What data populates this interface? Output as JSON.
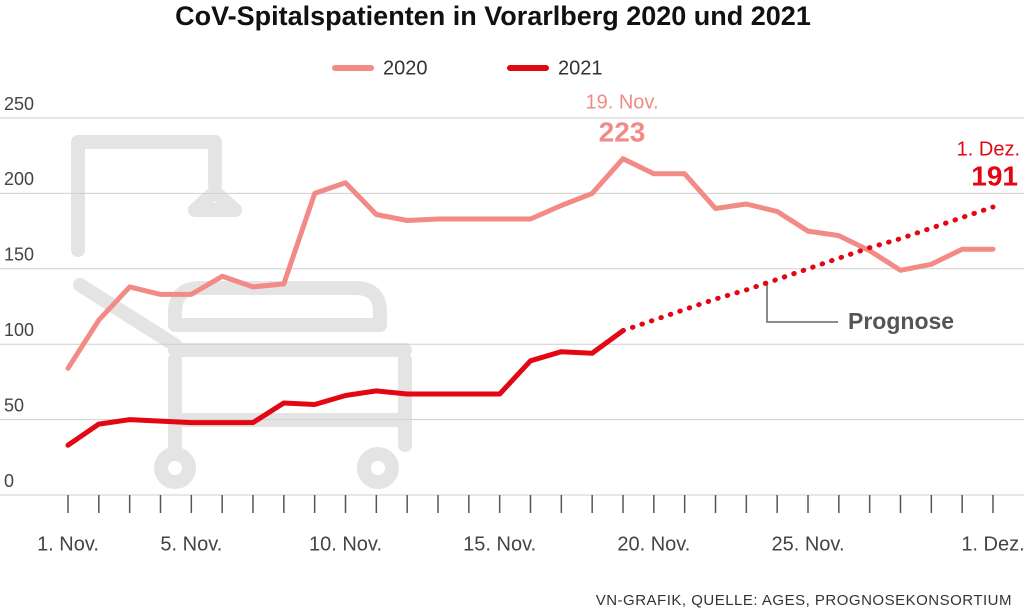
{
  "chart_data": {
    "type": "line",
    "title": "CoV-Spitalspatienten in Vorarlberg 2020 und 2021",
    "source": "VN-GRAFIK, QUELLE: AGES, PROGNOSEKONSORTIUM",
    "categories": [
      "1. Nov.",
      null,
      null,
      null,
      "5. Nov.",
      null,
      null,
      null,
      null,
      "10. Nov.",
      null,
      null,
      null,
      null,
      "15. Nov.",
      null,
      null,
      null,
      null,
      "20. Nov.",
      null,
      null,
      null,
      null,
      "25. Nov.",
      null,
      null,
      null,
      null,
      null,
      "1. Dez."
    ],
    "series": [
      {
        "name": "2020",
        "color": "#f28a86",
        "dash": "solid",
        "values": [
          84,
          116,
          138,
          133,
          133,
          145,
          138,
          140,
          200,
          207,
          186,
          182,
          183,
          183,
          183,
          183,
          192,
          200,
          223,
          213,
          213,
          190,
          193,
          188,
          175,
          172,
          162,
          149,
          153,
          163,
          163
        ]
      },
      {
        "name": "2021",
        "color": "#e30613",
        "dash": "solid",
        "values": [
          33,
          47,
          50,
          49,
          48,
          48,
          48,
          61,
          60,
          66,
          69,
          67,
          67,
          67,
          67,
          89,
          95,
          94,
          109,
          null,
          null,
          null,
          null,
          null,
          null,
          null,
          null,
          null,
          null,
          null,
          null
        ]
      },
      {
        "name": "Prognose",
        "color": "#e30613",
        "dash": "dotted",
        "values": [
          null,
          null,
          null,
          null,
          null,
          null,
          null,
          null,
          null,
          null,
          null,
          null,
          null,
          null,
          null,
          null,
          null,
          null,
          109,
          116,
          123,
          130,
          136,
          143,
          150,
          157,
          164,
          170,
          177,
          184,
          191
        ]
      }
    ],
    "annotations": [
      "19. Nov.",
      "1. Dez."
    ],
    "ylim": [
      0,
      250
    ],
    "yticks": [
      0,
      50,
      100,
      150,
      200,
      250
    ],
    "grid": true
  }
}
